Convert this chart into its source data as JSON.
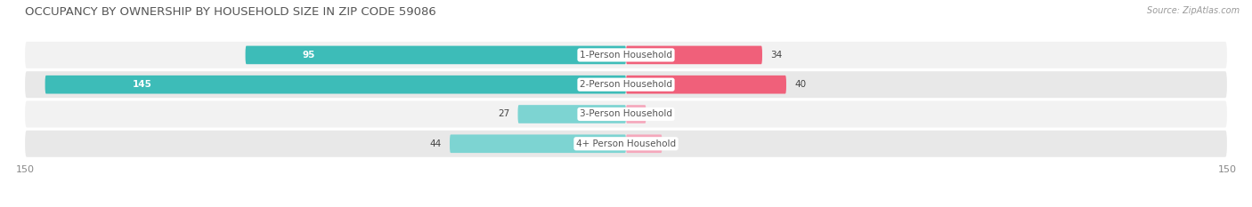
{
  "title": "OCCUPANCY BY OWNERSHIP BY HOUSEHOLD SIZE IN ZIP CODE 59086",
  "source": "Source: ZipAtlas.com",
  "categories": [
    "1-Person Household",
    "2-Person Household",
    "3-Person Household",
    "4+ Person Household"
  ],
  "owner_values": [
    95,
    145,
    27,
    44
  ],
  "renter_values": [
    34,
    40,
    5,
    9
  ],
  "owner_color_dark": "#3dbcb8",
  "owner_color_light": "#7dd4d2",
  "renter_color_dark": "#f0607a",
  "renter_color_light": "#f5a8bc",
  "row_bg_even": "#f2f2f2",
  "row_bg_odd": "#e8e8e8",
  "xlim": 150,
  "title_fontsize": 9.5,
  "label_fontsize": 7.5,
  "value_fontsize": 7.5,
  "axis_label_fontsize": 8,
  "background_color": "#ffffff",
  "bar_height": 0.62,
  "owner_inside_threshold": 50,
  "renter_inside_threshold": 999
}
